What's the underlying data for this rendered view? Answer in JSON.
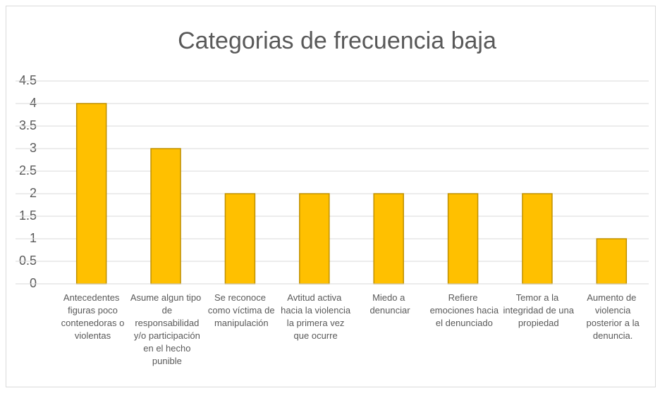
{
  "chart_data": {
    "type": "bar",
    "title": "Categorias de frecuencia baja",
    "categories": [
      "Antecedentes figuras poco contenedoras o violentas",
      "Asume algun tipo de responsabilidad y/o participación en el hecho punible",
      "Se reconoce como víctima de manipulación",
      "Avtitud activa hacia la violencia la primera vez que ocurre",
      "Miedo a denunciar",
      "Refiere emociones hacia el denunciado",
      "Temor a la integridad de una propiedad",
      "Aumento de violencia posterior a la denuncia."
    ],
    "values": [
      4,
      3,
      2,
      2,
      2,
      2,
      2,
      1
    ],
    "color": "#FFC000",
    "ylim": [
      0,
      4.5
    ],
    "yticks": [
      0,
      0.5,
      1,
      1.5,
      2,
      2.5,
      3,
      3.5,
      4,
      4.5
    ],
    "grid": true
  }
}
